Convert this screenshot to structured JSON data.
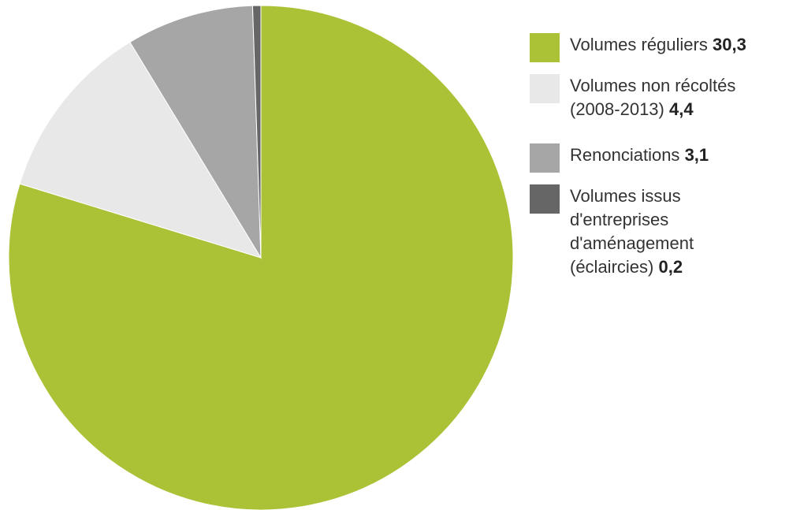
{
  "chart_data": {
    "type": "pie",
    "title": "",
    "start_angle_deg": 0,
    "direction": "clockwise",
    "legend_position": "right",
    "slices": [
      {
        "label": "Volumes réguliers",
        "value_label": "30,3",
        "value": 30.3,
        "color": "#abc136"
      },
      {
        "label": "Volumes non récoltés\n(2008-2013)",
        "value_label": "4,4",
        "value": 4.4,
        "color": "#e8e8e8"
      },
      {
        "label": "Renonciations",
        "value_label": "3,1",
        "value": 3.1,
        "color": "#a6a6a6"
      },
      {
        "label": "Volumes issus\nd'entreprises\nd'aménagement\n(éclaircies)",
        "value_label": "0,2",
        "value": 0.2,
        "color": "#666666"
      }
    ]
  }
}
